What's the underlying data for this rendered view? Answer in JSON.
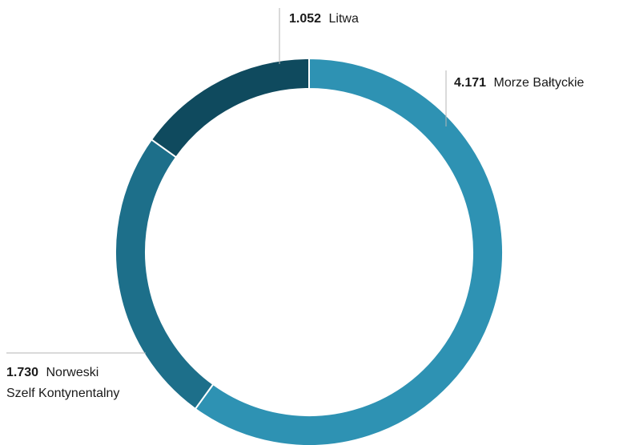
{
  "chart_data": {
    "type": "pie",
    "variant": "donut",
    "title": "",
    "slices": [
      {
        "label": "Morze Bałtyckie",
        "value": 4171,
        "value_text": "4.171",
        "label_lines": [
          "Morze Bałtyckie"
        ],
        "color": "#2e92b3"
      },
      {
        "label": "Norweski Szelf Kontynentalny",
        "value": 1730,
        "value_text": "1.730",
        "label_lines": [
          "Norweski",
          "Szelf Kontynentalny"
        ],
        "color": "#1d6f8a"
      },
      {
        "label": "Litwa",
        "value": 1052,
        "value_text": "1.052",
        "label_lines": [
          "Litwa"
        ],
        "color": "#0f4a5e"
      }
    ],
    "start_angle_deg": 0,
    "direction": "clockwise",
    "legend": "none",
    "separator_color": "#ffffff"
  }
}
